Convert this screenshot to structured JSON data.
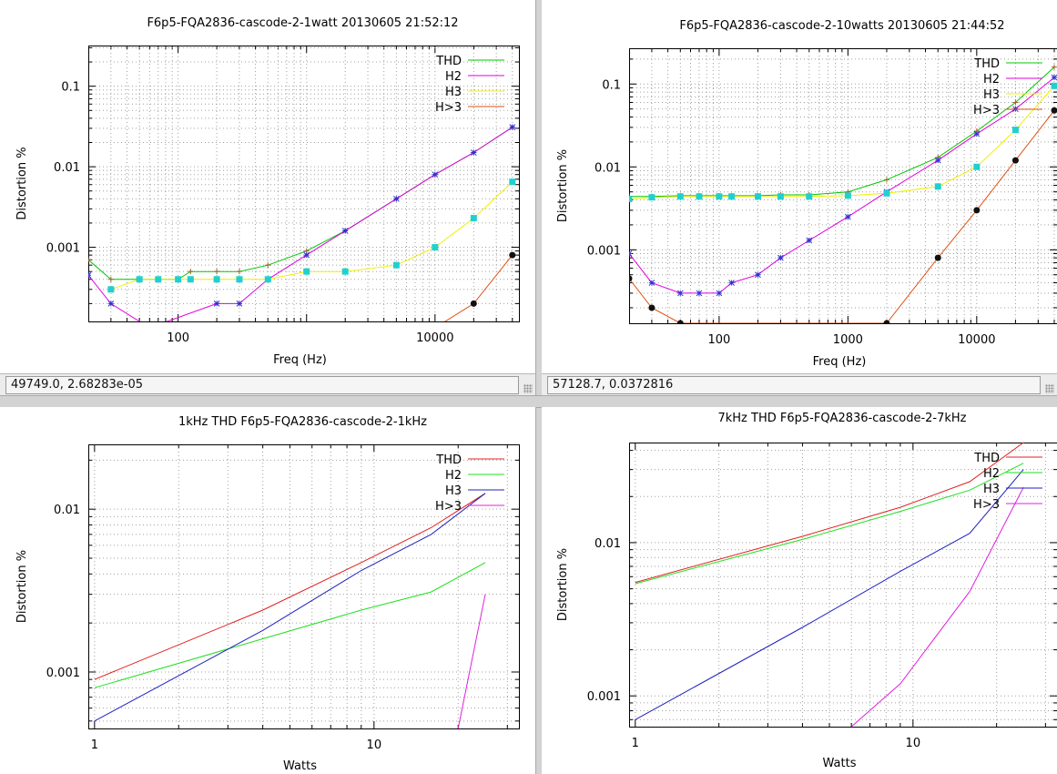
{
  "panes": [
    {
      "status": "49749.0,  2.68283e-05",
      "chart_data": {
        "type": "line",
        "title": "F6p5-FQA2836-cascode-2-1watt 20130605 21:52:12",
        "xlabel": "Freq (Hz)",
        "ylabel": "Distortion %",
        "xscale": "log",
        "yscale": "log",
        "xlim": [
          20,
          45000
        ],
        "ylim": [
          0.00012,
          0.32
        ],
        "xticks": [
          100,
          10000
        ],
        "yticks": [
          0.001,
          0.01,
          0.1
        ],
        "grid": true,
        "legend_position": "top-right",
        "series": [
          {
            "name": "THD",
            "color": "#00c800",
            "marker": "plus",
            "marker_color": "#a06030",
            "x": [
              20,
              30,
              50,
              70,
              100,
              125,
              200,
              300,
              500,
              1000,
              2000,
              5000,
              10000,
              20000,
              40000
            ],
            "y": [
              0.0007,
              0.0004,
              0.0004,
              0.0004,
              0.0004,
              0.0005,
              0.0005,
              0.0005,
              0.0006,
              0.0009,
              0.0016,
              0.004,
              0.008,
              0.015,
              0.031
            ]
          },
          {
            "name": "H2",
            "color": "#e000e0",
            "marker": "star",
            "marker_color": "#3030d0",
            "x": [
              20,
              30,
              60,
              200,
              300,
              500,
              1000,
              2000,
              5000,
              10000,
              20000,
              40000
            ],
            "y": [
              0.00045,
              0.0002,
              0.0001,
              0.0002,
              0.0002,
              0.0004,
              0.0008,
              0.0016,
              0.004,
              0.008,
              0.015,
              0.031
            ]
          },
          {
            "name": "H3",
            "color": "#f0f000",
            "marker": "square",
            "marker_color": "#20d0d0",
            "x": [
              30,
              50,
              70,
              100,
              125,
              200,
              300,
              500,
              1000,
              2000,
              5000,
              10000,
              20000,
              40000
            ],
            "y": [
              0.0003,
              0.0004,
              0.0004,
              0.0004,
              0.0004,
              0.0004,
              0.0004,
              0.0004,
              0.0005,
              0.0005,
              0.0006,
              0.001,
              0.0023,
              0.0065
            ]
          },
          {
            "name": "H>3",
            "color": "#e05010",
            "marker": "circle",
            "marker_color": "#111111",
            "x": [
              10000,
              20000,
              40000
            ],
            "y": [
              0.0001,
              0.0002,
              0.0008
            ]
          }
        ]
      }
    },
    {
      "status": "57128.7,  0.0372816",
      "chart_data": {
        "type": "line",
        "title": "F6p5-FQA2836-cascode-2-10watts 20130605 21:44:52",
        "xlabel": "Freq (Hz)",
        "ylabel": "Distortion %",
        "xscale": "log",
        "yscale": "log",
        "xlim": [
          20,
          42000
        ],
        "ylim": [
          0.00013,
          0.27
        ],
        "xticks": [
          100,
          1000,
          10000
        ],
        "yticks": [
          0.001,
          0.01,
          0.1
        ],
        "grid": true,
        "legend_position": "top-right",
        "series": [
          {
            "name": "THD",
            "color": "#00c800",
            "marker": "plus",
            "marker_color": "#a06030",
            "x": [
              20,
              30,
              50,
              70,
              100,
              125,
              200,
              300,
              500,
              1000,
              2000,
              5000,
              10000,
              20000,
              40000
            ],
            "y": [
              0.0044,
              0.0044,
              0.0045,
              0.0045,
              0.0045,
              0.0045,
              0.0045,
              0.0046,
              0.0046,
              0.005,
              0.007,
              0.013,
              0.027,
              0.06,
              0.16
            ]
          },
          {
            "name": "H2",
            "color": "#e000e0",
            "marker": "star",
            "marker_color": "#3030d0",
            "x": [
              20,
              30,
              50,
              70,
              100,
              125,
              200,
              300,
              500,
              1000,
              2000,
              5000,
              10000,
              20000,
              40000
            ],
            "y": [
              0.0009,
              0.0004,
              0.0003,
              0.0003,
              0.0003,
              0.0004,
              0.0005,
              0.0008,
              0.0013,
              0.0025,
              0.005,
              0.012,
              0.025,
              0.05,
              0.12
            ]
          },
          {
            "name": "H3",
            "color": "#f0f000",
            "marker": "square",
            "marker_color": "#20d0d0",
            "x": [
              20,
              30,
              50,
              70,
              100,
              125,
              200,
              300,
              500,
              1000,
              2000,
              5000,
              10000,
              20000,
              40000
            ],
            "y": [
              0.0041,
              0.0043,
              0.0044,
              0.0044,
              0.0044,
              0.0044,
              0.0044,
              0.0044,
              0.0044,
              0.0045,
              0.0048,
              0.0058,
              0.01,
              0.028,
              0.095
            ]
          },
          {
            "name": "H>3",
            "color": "#e05010",
            "marker": "circle",
            "marker_color": "#111111",
            "x": [
              20,
              30,
              50,
              2000,
              5000,
              10000,
              20000,
              40000
            ],
            "y": [
              0.00045,
              0.0002,
              0.00013,
              0.00013,
              0.0008,
              0.003,
              0.012,
              0.048
            ]
          }
        ]
      }
    },
    {
      "status": "",
      "chart_data": {
        "type": "line",
        "title": "1kHz THD F6p5-FQA2836-cascode-2-1kHz",
        "xlabel": "Watts",
        "ylabel": "Distortion %",
        "xscale": "log",
        "yscale": "log",
        "xlim": [
          0.95,
          33
        ],
        "ylim": [
          0.00045,
          0.025
        ],
        "xticks": [
          1,
          10
        ],
        "yticks": [
          0.001,
          0.01
        ],
        "grid": true,
        "legend_position": "top-right",
        "series": [
          {
            "name": "THD",
            "color": "#e02020",
            "x": [
              1,
              4,
              9,
              16,
              25
            ],
            "y": [
              0.0009,
              0.0024,
              0.0047,
              0.0077,
              0.0125
            ]
          },
          {
            "name": "H2",
            "color": "#20e020",
            "x": [
              1,
              4,
              9,
              16,
              25
            ],
            "y": [
              0.0008,
              0.0016,
              0.0024,
              0.0031,
              0.0047
            ]
          },
          {
            "name": "H3",
            "color": "#2020c0",
            "x": [
              1,
              4,
              9,
              16,
              25
            ],
            "y": [
              0.0005,
              0.0018,
              0.0042,
              0.007,
              0.0125
            ]
          },
          {
            "name": "H>3",
            "color": "#e020e0",
            "x": [
              20,
              25
            ],
            "y": [
              0.00045,
              0.003
            ]
          }
        ]
      }
    },
    {
      "status": "",
      "chart_data": {
        "type": "line",
        "title": "7kHz THD F6p5-FQA2836-cascode-2-7kHz",
        "xlabel": "Watts",
        "ylabel": "Distortion %",
        "xscale": "log",
        "yscale": "log",
        "xlim": [
          0.95,
          33
        ],
        "ylim": [
          0.00063,
          0.045
        ],
        "xticks": [
          1,
          10
        ],
        "yticks": [
          0.001,
          0.01
        ],
        "grid": true,
        "legend_position": "top-right",
        "series": [
          {
            "name": "THD",
            "color": "#e02020",
            "x": [
              1,
              4,
              9,
              16,
              25
            ],
            "y": [
              0.0055,
              0.011,
              0.017,
              0.025,
              0.045
            ]
          },
          {
            "name": "H2",
            "color": "#20e020",
            "x": [
              1,
              4,
              9,
              16,
              25
            ],
            "y": [
              0.0054,
              0.0105,
              0.016,
              0.022,
              0.033
            ]
          },
          {
            "name": "H3",
            "color": "#2020c0",
            "x": [
              1,
              4,
              9,
              16,
              25
            ],
            "y": [
              0.0007,
              0.0028,
              0.0065,
              0.0115,
              0.03
            ]
          },
          {
            "name": "H>3",
            "color": "#e020e0",
            "x": [
              6,
              9,
              16,
              25
            ],
            "y": [
              0.00063,
              0.0012,
              0.0048,
              0.023
            ]
          }
        ]
      }
    }
  ]
}
